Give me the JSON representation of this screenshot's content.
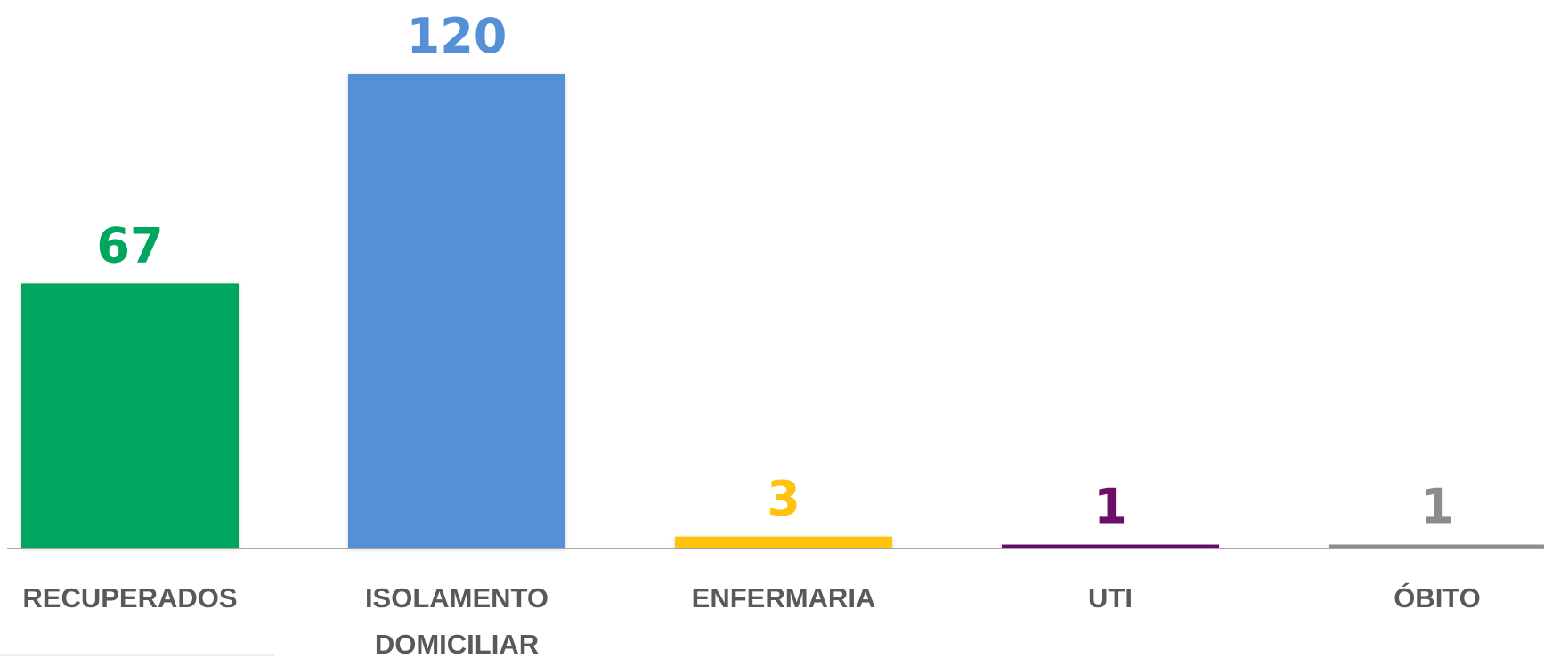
{
  "chart_data": {
    "type": "bar",
    "categories": [
      "RECUPERADOS",
      "ISOLAMENTO DOMICILIAR",
      "ENFERMARIA",
      "UTI",
      "ÓBITO"
    ],
    "category_label_lines": [
      [
        "RECUPERADOS"
      ],
      [
        "ISOLAMENTO",
        "DOMICILIAR"
      ],
      [
        "ENFERMARIA"
      ],
      [
        "UTI"
      ],
      [
        "ÓBITO"
      ]
    ],
    "values": [
      67,
      120,
      3,
      1,
      1
    ],
    "value_labels": [
      "67",
      "120",
      "3",
      "1",
      "1"
    ],
    "colors": [
      "#00A65E",
      "#5590D6",
      "#FFC20E",
      "#6B0F6B",
      "#8C8C8C"
    ],
    "title": "",
    "xlabel": "",
    "ylabel": "",
    "ylim": [
      0,
      120
    ],
    "grid": false,
    "legend": "none",
    "axis_color": "#A6A6A6"
  }
}
